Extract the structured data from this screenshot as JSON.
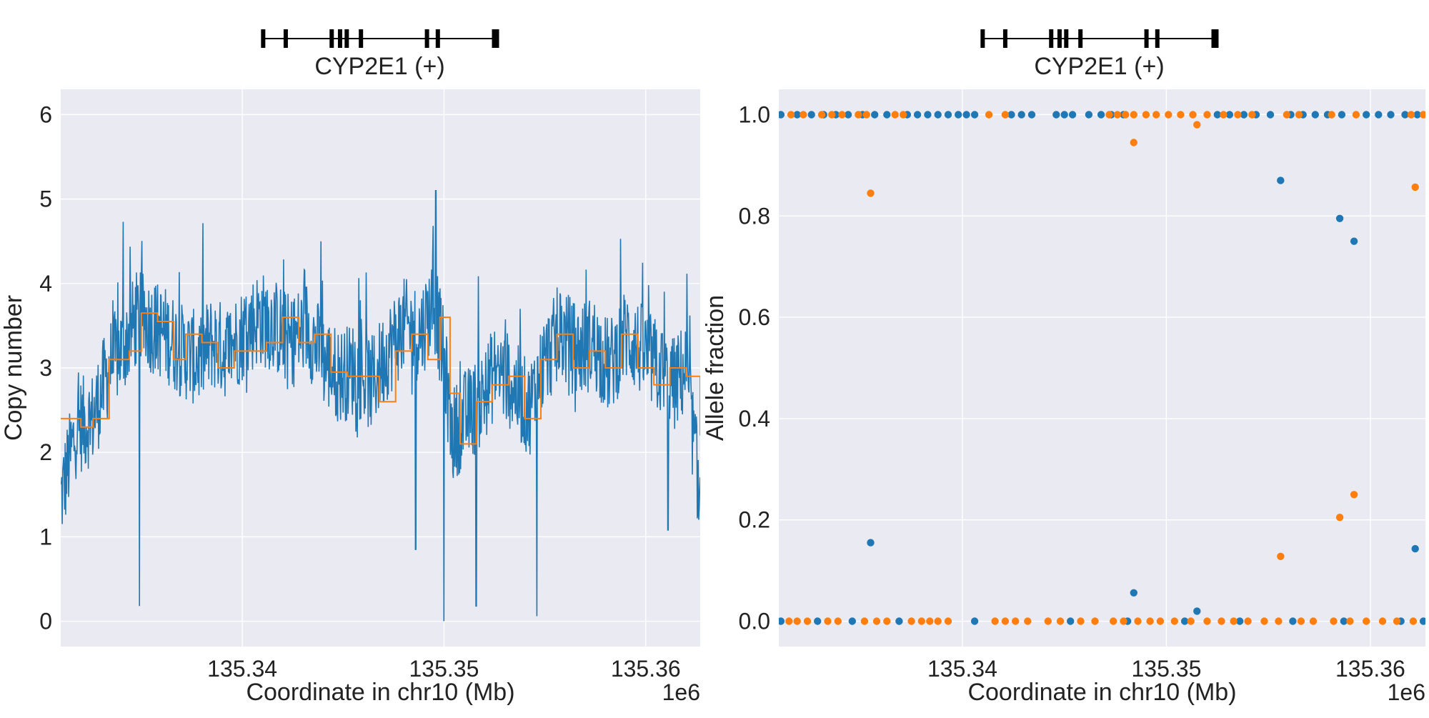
{
  "colors": {
    "background": "#eaeaf2",
    "grid": "#ffffff",
    "series_blue": "#1f77b4",
    "series_orange": "#ff7f0e",
    "gene": "#000000"
  },
  "chart_data": [
    {
      "type": "line",
      "gene_track": {
        "label": "CYP2E1 (+)",
        "start": 135331.0,
        "end": 135359.3,
        "exons": [
          135331.2,
          135333.9,
          135339.4,
          135340.4,
          135341.2,
          135342.9,
          135350.8,
          135352.1,
          135359.0
        ]
      },
      "xlabel": "Coordinate in chr10 (Mb)",
      "ylabel": "Copy number",
      "x_offset_label": "1e6",
      "xlim": [
        135331.0,
        135362.7
      ],
      "ylim": [
        -0.3,
        6.3
      ],
      "xticks": [
        135340,
        135350,
        135360
      ],
      "xtick_labels": [
        "135.34",
        "135.35",
        "135.36"
      ],
      "yticks": [
        0,
        1,
        2,
        3,
        4,
        5,
        6
      ],
      "ytick_labels": [
        "0",
        "1",
        "2",
        "3",
        "4",
        "5",
        "6"
      ],
      "grid": true,
      "series": [
        {
          "color": "#1f77b4",
          "x": [
            135331.0,
            135331.8,
            135332.6,
            135333.4,
            135334.2,
            135334.8,
            135335.5,
            135336.2,
            135337.0,
            135337.8,
            135338.5,
            135339.2,
            135340.0,
            135340.8,
            135341.6,
            135342.4,
            135343.2,
            135344.0,
            135344.8,
            135345.6,
            135346.4,
            135347.2,
            135348.0,
            135348.8,
            135349.5,
            135350.0,
            135350.4,
            135351.0,
            135351.8,
            135352.6,
            135353.4,
            135354.2,
            135355.0,
            135355.8,
            135356.6,
            135357.4,
            135358.2,
            135359.0,
            135359.8,
            135360.6,
            135361.4,
            135362.0,
            135362.7
          ],
          "y": [
            1.45,
            2.3,
            2.4,
            3.0,
            3.3,
            3.6,
            3.5,
            3.4,
            3.2,
            3.1,
            3.3,
            3.2,
            3.4,
            3.6,
            3.5,
            3.3,
            3.5,
            3.1,
            2.9,
            3.0,
            2.8,
            3.2,
            3.5,
            3.4,
            3.8,
            3.1,
            2.2,
            2.4,
            2.6,
            3.0,
            2.8,
            2.5,
            3.1,
            3.4,
            3.2,
            3.3,
            3.0,
            3.4,
            3.2,
            3.0,
            2.8,
            3.0,
            1.4
          ]
        },
        {
          "color": "#ff7f0e",
          "x": [
            135331.0,
            135332.0,
            135332.6,
            135333.4,
            135334.4,
            135335.0,
            135335.8,
            135336.6,
            135337.2,
            135338.0,
            135338.8,
            135339.6,
            135340.4,
            135341.2,
            135342.0,
            135342.8,
            135343.6,
            135344.4,
            135345.2,
            135346.0,
            135346.8,
            135347.6,
            135348.4,
            135349.2,
            135349.8,
            135350.3,
            135350.8,
            135351.6,
            135352.4,
            135353.2,
            135354.0,
            135354.8,
            135355.6,
            135356.4,
            135357.2,
            135358.0,
            135358.8,
            135359.6,
            135360.4,
            135361.2,
            135362.0,
            135362.7
          ],
          "y": [
            2.4,
            2.3,
            2.4,
            3.1,
            3.2,
            3.65,
            3.55,
            3.1,
            3.4,
            3.3,
            3.0,
            3.2,
            3.2,
            3.3,
            3.6,
            3.3,
            3.4,
            2.95,
            2.9,
            2.9,
            2.6,
            3.2,
            3.4,
            3.1,
            3.6,
            2.7,
            2.1,
            2.6,
            2.8,
            2.9,
            2.4,
            3.1,
            3.4,
            3.0,
            3.2,
            3.0,
            3.4,
            3.0,
            2.8,
            3.0,
            2.9,
            2.2
          ]
        }
      ],
      "dips": [
        {
          "x": 135334.9,
          "y": 0.18
        },
        {
          "x": 135348.6,
          "y": 0.85
        },
        {
          "x": 135350.0,
          "y": 0.0
        },
        {
          "x": 135351.6,
          "y": 0.18
        },
        {
          "x": 135354.6,
          "y": 0.06
        },
        {
          "x": 135361.1,
          "y": 1.08
        }
      ],
      "peaks": [
        {
          "x": 135334.1,
          "y": 4.73
        },
        {
          "x": 135349.6,
          "y": 5.1
        },
        {
          "x": 135343.9,
          "y": 4.5
        }
      ]
    },
    {
      "type": "scatter",
      "gene_track": {
        "label": "CYP2E1 (+)",
        "start": 135331.0,
        "end": 135359.3,
        "exons": [
          135331.2,
          135333.9,
          135339.4,
          135340.4,
          135341.2,
          135342.9,
          135350.8,
          135352.1,
          135359.0
        ]
      },
      "xlabel": "Coordinate in chr10 (Mb)",
      "ylabel": "Allele fraction",
      "x_offset_label": "1e6",
      "xlim": [
        135331.0,
        135362.7
      ],
      "ylim": [
        -0.05,
        1.05
      ],
      "xticks": [
        135340,
        135350,
        135360
      ],
      "xtick_labels": [
        "135.34",
        "135.35",
        "135.36"
      ],
      "yticks": [
        0.0,
        0.2,
        0.4,
        0.6,
        0.8,
        1.0
      ],
      "ytick_labels": [
        "0.0",
        "0.2",
        "0.4",
        "0.6",
        "0.8",
        "1.0"
      ],
      "grid": true,
      "series": [
        {
          "color": "#1f77b4",
          "points": [
            [
              135335.5,
              0.155
            ],
            [
              135348.4,
              0.056
            ],
            [
              135351.5,
              0.02
            ],
            [
              135355.6,
              0.87
            ],
            [
              135358.5,
              0.795
            ],
            [
              135359.2,
              0.75
            ],
            [
              135362.2,
              0.143
            ],
            [
              135331.1,
              1.0
            ],
            [
              135331.9,
              1.0
            ],
            [
              135332.6,
              1.0
            ],
            [
              135333.2,
              1.0
            ],
            [
              135333.8,
              1.0
            ],
            [
              135334.4,
              1.0
            ],
            [
              135335.1,
              1.0
            ],
            [
              135335.7,
              1.0
            ],
            [
              135336.3,
              1.0
            ],
            [
              135337.3,
              1.0
            ],
            [
              135337.8,
              1.0
            ],
            [
              135338.3,
              1.0
            ],
            [
              135338.8,
              1.0
            ],
            [
              135339.3,
              1.0
            ],
            [
              135339.8,
              1.0
            ],
            [
              135340.2,
              1.0
            ],
            [
              135340.6,
              1.0
            ],
            [
              135342.4,
              1.0
            ],
            [
              135342.9,
              1.0
            ],
            [
              135343.4,
              1.0
            ],
            [
              135344.6,
              1.0
            ],
            [
              135345.0,
              1.0
            ],
            [
              135345.4,
              1.0
            ],
            [
              135346.2,
              1.0
            ],
            [
              135346.8,
              1.0
            ],
            [
              135347.3,
              1.0
            ],
            [
              135347.9,
              1.0
            ],
            [
              135352.5,
              1.0
            ],
            [
              135353.1,
              1.0
            ],
            [
              135353.8,
              1.0
            ],
            [
              135354.4,
              1.0
            ],
            [
              135355.1,
              1.0
            ],
            [
              135356.1,
              1.0
            ],
            [
              135356.7,
              1.0
            ],
            [
              135357.3,
              1.0
            ],
            [
              135357.9,
              1.0
            ],
            [
              135358.6,
              1.0
            ],
            [
              135359.8,
              1.0
            ],
            [
              135360.4,
              1.0
            ],
            [
              135361.0,
              1.0
            ],
            [
              135361.7,
              1.0
            ],
            [
              135362.3,
              1.0
            ],
            [
              135331.1,
              0.0
            ],
            [
              135332.9,
              0.0
            ],
            [
              135334.6,
              0.0
            ],
            [
              135336.9,
              0.0
            ],
            [
              135340.6,
              0.0
            ],
            [
              135345.3,
              0.0
            ],
            [
              135348.1,
              0.0
            ],
            [
              135350.9,
              0.0
            ],
            [
              135353.6,
              0.0
            ],
            [
              135356.2,
              0.0
            ],
            [
              135358.7,
              0.0
            ],
            [
              135361.5,
              0.0
            ],
            [
              135362.6,
              0.0
            ]
          ]
        },
        {
          "color": "#ff7f0e",
          "points": [
            [
              135335.5,
              0.845
            ],
            [
              135348.4,
              0.945
            ],
            [
              135351.5,
              0.98
            ],
            [
              135355.6,
              0.128
            ],
            [
              135358.5,
              0.205
            ],
            [
              135359.2,
              0.25
            ],
            [
              135362.2,
              0.857
            ],
            [
              135331.6,
              1.0
            ],
            [
              135332.2,
              1.0
            ],
            [
              135333.1,
              1.0
            ],
            [
              135333.6,
              1.0
            ],
            [
              135334.1,
              1.0
            ],
            [
              135334.9,
              1.0
            ],
            [
              135335.3,
              1.0
            ],
            [
              135336.7,
              1.0
            ],
            [
              135337.1,
              1.0
            ],
            [
              135341.3,
              1.0
            ],
            [
              135342.1,
              1.0
            ],
            [
              135347.2,
              1.0
            ],
            [
              135347.6,
              1.0
            ],
            [
              135348.0,
              1.0
            ],
            [
              135348.4,
              1.0
            ],
            [
              135349.0,
              1.0
            ],
            [
              135349.5,
              1.0
            ],
            [
              135350.1,
              1.0
            ],
            [
              135350.7,
              1.0
            ],
            [
              135351.3,
              1.0
            ],
            [
              135352.0,
              1.0
            ],
            [
              135352.8,
              1.0
            ],
            [
              135353.5,
              1.0
            ],
            [
              135354.2,
              1.0
            ],
            [
              135355.9,
              1.0
            ],
            [
              135356.5,
              1.0
            ],
            [
              135358.1,
              1.0
            ],
            [
              135359.3,
              1.0
            ],
            [
              135362.0,
              1.0
            ],
            [
              135362.6,
              1.0
            ],
            [
              135331.5,
              0.0
            ],
            [
              135331.9,
              0.0
            ],
            [
              135332.4,
              0.0
            ],
            [
              135333.4,
              0.0
            ],
            [
              135333.9,
              0.0
            ],
            [
              135335.2,
              0.0
            ],
            [
              135335.8,
              0.0
            ],
            [
              135336.3,
              0.0
            ],
            [
              135337.5,
              0.0
            ],
            [
              135338.0,
              0.0
            ],
            [
              135338.4,
              0.0
            ],
            [
              135338.8,
              0.0
            ],
            [
              135339.3,
              0.0
            ],
            [
              135341.6,
              0.0
            ],
            [
              135342.1,
              0.0
            ],
            [
              135342.6,
              0.0
            ],
            [
              135343.2,
              0.0
            ],
            [
              135344.2,
              0.0
            ],
            [
              135344.8,
              0.0
            ],
            [
              135345.8,
              0.0
            ],
            [
              135346.5,
              0.0
            ],
            [
              135347.4,
              0.0
            ],
            [
              135347.9,
              0.0
            ],
            [
              135348.6,
              0.0
            ],
            [
              135349.2,
              0.0
            ],
            [
              135349.7,
              0.0
            ],
            [
              135350.4,
              0.0
            ],
            [
              135351.2,
              0.0
            ],
            [
              135352.0,
              0.0
            ],
            [
              135352.7,
              0.0
            ],
            [
              135353.3,
              0.0
            ],
            [
              135354.0,
              0.0
            ],
            [
              135354.8,
              0.0
            ],
            [
              135355.5,
              0.0
            ],
            [
              135356.6,
              0.0
            ],
            [
              135357.2,
              0.0
            ],
            [
              135358.2,
              0.0
            ],
            [
              135359.0,
              0.0
            ],
            [
              135359.8,
              0.0
            ],
            [
              135360.6,
              0.0
            ],
            [
              135361.3,
              0.0
            ],
            [
              135362.1,
              0.0
            ]
          ]
        }
      ]
    }
  ]
}
